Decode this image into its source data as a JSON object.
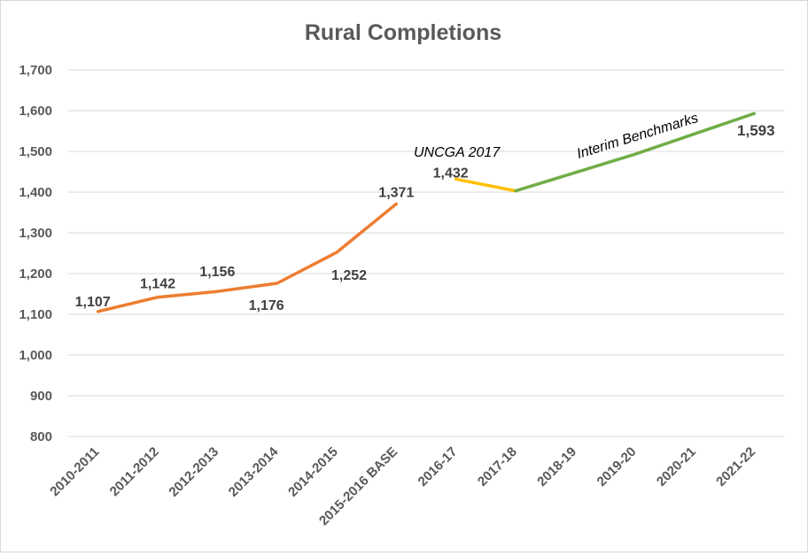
{
  "chart_data": {
    "type": "line",
    "title": "Rural Completions",
    "categories": [
      "2010-2011",
      "2011-2012",
      "2012-2013",
      "2013-2014",
      "2014-2015",
      "2015-2016 BASE",
      "2016-17",
      "2017-18",
      "2018-19",
      "2019-20",
      "2020-21",
      "2021-22"
    ],
    "y_ticks": [
      "800",
      "900",
      "1,000",
      "1,100",
      "1,200",
      "1,300",
      "1,400",
      "1,500",
      "1,600",
      "1,700"
    ],
    "ylim": [
      800,
      1700
    ],
    "grid": true,
    "series": [
      {
        "color": "#ED7D31",
        "points": [
          {
            "x": "2010-2011",
            "y": 1107,
            "label": "1,107"
          },
          {
            "x": "2011-2012",
            "y": 1142,
            "label": "1,142"
          },
          {
            "x": "2012-2013",
            "y": 1156,
            "label": "1,156"
          },
          {
            "x": "2013-2014",
            "y": 1176,
            "label": "1,176"
          },
          {
            "x": "2014-2015",
            "y": 1252,
            "label": "1,252"
          },
          {
            "x": "2015-2016 BASE",
            "y": 1371,
            "label": "1,371"
          }
        ]
      },
      {
        "color": "#FFC000",
        "points": [
          {
            "x": "2016-17",
            "y": 1432,
            "label": "1,432"
          },
          {
            "x": "2017-18",
            "y": 1403,
            "label": ""
          }
        ]
      },
      {
        "color": "#70AD47",
        "points": [
          {
            "x": "2017-18",
            "y": 1403,
            "label": ""
          },
          {
            "x": "2018-19",
            "y": 1448,
            "label": ""
          },
          {
            "x": "2019-20",
            "y": 1493,
            "label": ""
          },
          {
            "x": "2020-21",
            "y": 1543,
            "label": ""
          },
          {
            "x": "2021-22",
            "y": 1593,
            "label": "1,593"
          }
        ]
      }
    ],
    "annotations": [
      "UNCGA 2017",
      "Interim Benchmarks"
    ]
  }
}
